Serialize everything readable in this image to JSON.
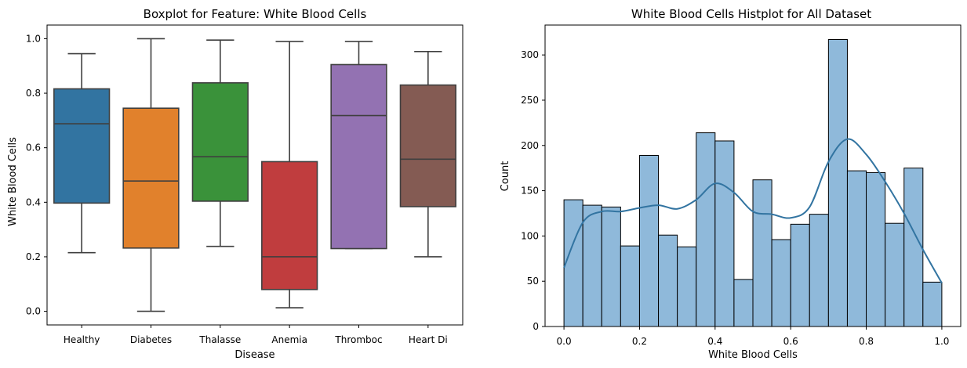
{
  "chart_data": [
    {
      "type": "boxplot",
      "title": "Boxplot for Feature: White Blood Cells",
      "xlabel": "Disease",
      "ylabel": "White Blood Cells",
      "ylim": [
        -0.05,
        1.05
      ],
      "yticks": [
        0.0,
        0.2,
        0.4,
        0.6,
        0.8,
        1.0
      ],
      "ytick_labels": [
        "0.0",
        "0.2",
        "0.4",
        "0.6",
        "0.8",
        "1.0"
      ],
      "grid": false,
      "categories": [
        "Healthy",
        "Diabetes",
        "Thalasse",
        "Anemia",
        "Thromboc",
        "Heart Di"
      ],
      "boxes": [
        {
          "whisker_low": 0.215,
          "q1": 0.397,
          "median": 0.688,
          "q3": 0.816,
          "whisker_high": 0.945,
          "color": "#3274a1"
        },
        {
          "whisker_low": 0.0,
          "q1": 0.232,
          "median": 0.478,
          "q3": 0.745,
          "whisker_high": 1.0,
          "color": "#e1812c"
        },
        {
          "whisker_low": 0.238,
          "q1": 0.404,
          "median": 0.567,
          "q3": 0.838,
          "whisker_high": 0.995,
          "color": "#3a923a"
        },
        {
          "whisker_low": 0.013,
          "q1": 0.08,
          "median": 0.2,
          "q3": 0.549,
          "whisker_high": 0.99,
          "color": "#c03d3e"
        },
        {
          "whisker_low": 0.23,
          "q1": 0.23,
          "median": 0.718,
          "q3": 0.905,
          "whisker_high": 0.99,
          "color": "#9372b2"
        },
        {
          "whisker_low": 0.2,
          "q1": 0.384,
          "median": 0.558,
          "q3": 0.83,
          "whisker_high": 0.953,
          "color": "#845b53"
        }
      ]
    },
    {
      "type": "histogram",
      "title": "White Blood Cells Histplot for All Dataset",
      "xlabel": "White Blood Cells",
      "ylabel": "Count",
      "xlim": [
        -0.05,
        1.05
      ],
      "ylim": [
        0,
        333
      ],
      "xticks": [
        0.0,
        0.2,
        0.4,
        0.6,
        0.8,
        1.0
      ],
      "xtick_labels": [
        "0.0",
        "0.2",
        "0.4",
        "0.6",
        "0.8",
        "1.0"
      ],
      "yticks": [
        0,
        50,
        100,
        150,
        200,
        250,
        300
      ],
      "ytick_labels": [
        "0",
        "50",
        "100",
        "150",
        "200",
        "250",
        "300"
      ],
      "grid": false,
      "bin_edges": [
        0.0,
        0.05,
        0.1,
        0.15,
        0.2,
        0.25,
        0.3,
        0.35,
        0.4,
        0.45,
        0.5,
        0.55,
        0.6,
        0.65,
        0.7,
        0.75,
        0.8,
        0.85,
        0.9,
        0.95,
        1.0
      ],
      "counts": [
        140,
        134,
        132,
        89,
        189,
        101,
        88,
        214,
        205,
        52,
        162,
        96,
        113,
        124,
        317,
        172,
        170,
        114,
        175,
        49
      ],
      "bar_color": "#8fb9da",
      "kde": {
        "x": [
          0.0,
          0.05,
          0.1,
          0.15,
          0.2,
          0.25,
          0.3,
          0.35,
          0.4,
          0.45,
          0.5,
          0.55,
          0.6,
          0.65,
          0.7,
          0.75,
          0.8,
          0.85,
          0.9,
          0.95,
          1.0
        ],
        "y": [
          65,
          115,
          127,
          127,
          131,
          134,
          130,
          140,
          158,
          148,
          127,
          124,
          120,
          132,
          182,
          207,
          190,
          160,
          125,
          85,
          48
        ],
        "color": "#3274a1"
      }
    }
  ]
}
